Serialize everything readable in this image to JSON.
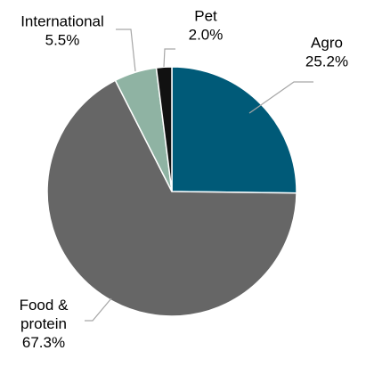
{
  "chart_data": {
    "type": "pie",
    "start_angle_deg": 0,
    "direction": "clockwise",
    "slices": [
      {
        "label": "Agro",
        "value": 25.2,
        "value_text": "25.2%",
        "color": "#005a78"
      },
      {
        "label": "Food &\nprotein",
        "value": 67.3,
        "value_text": "67.3%",
        "color": "#666666"
      },
      {
        "label": "International",
        "value": 5.5,
        "value_text": "5.5%",
        "color": "#8fb3a3"
      },
      {
        "label": "Pet",
        "value": 2.0,
        "value_text": "2.0%",
        "color": "#111111"
      }
    ],
    "legend": "none",
    "data_labels": "outside with leader lines"
  }
}
